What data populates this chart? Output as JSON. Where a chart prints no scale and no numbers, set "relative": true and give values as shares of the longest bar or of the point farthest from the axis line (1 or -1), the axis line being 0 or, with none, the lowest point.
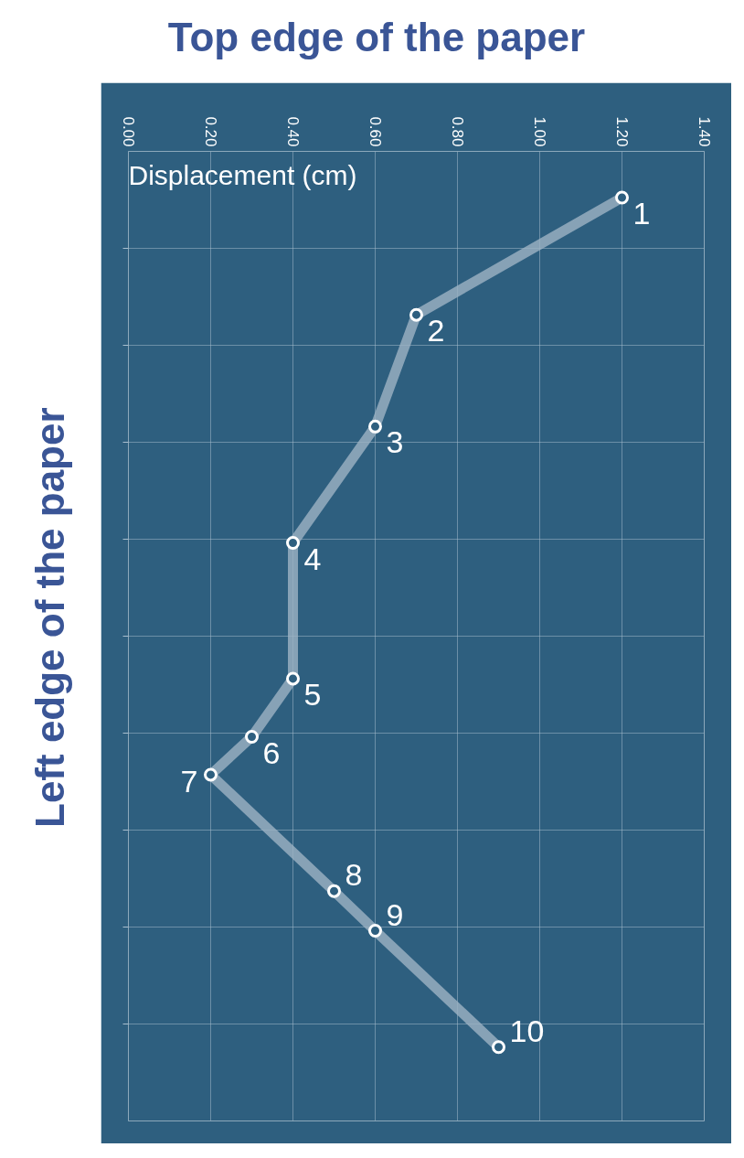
{
  "chart_data": {
    "type": "line",
    "title": "Top edge of the paper",
    "ylabel": "Left edge of the paper",
    "xlabel": "Displacement (cm)",
    "relative": true,
    "x": [
      1.2,
      0.7,
      0.6,
      0.4,
      0.4,
      0.3,
      0.2,
      0.5,
      0.6,
      0.9
    ],
    "series": [
      {
        "color": "#9db3c4",
        "values": [
          1.0,
          0.873,
          0.752,
          0.626,
          0.479,
          0.416,
          0.375,
          0.249,
          0.206,
          0.08
        ]
      }
    ],
    "xlim": [
      0,
      1.4
    ],
    "xticks": [
      {
        "value": 0,
        "label": "0.00"
      },
      {
        "value": 0.2,
        "label": "0.20"
      },
      {
        "value": 0.4,
        "label": "0.40"
      },
      {
        "value": 0.6,
        "label": "0.60"
      },
      {
        "value": 0.8,
        "label": "0.80"
      },
      {
        "value": 1.0,
        "label": "1.00"
      },
      {
        "value": 1.2,
        "label": "1.20"
      },
      {
        "value": 1.4,
        "label": "1.40"
      }
    ],
    "tick_labels": "x",
    "grid": true,
    "marker": "circle",
    "annotations": [
      {
        "text": "1",
        "x": 1.2,
        "y": 1.0
      },
      {
        "text": "2",
        "x": 0.7,
        "y": 0.873
      },
      {
        "text": "3",
        "x": 0.6,
        "y": 0.752
      },
      {
        "text": "4",
        "x": 0.4,
        "y": 0.626
      },
      {
        "text": "5",
        "x": 0.4,
        "y": 0.479
      },
      {
        "text": "6",
        "x": 0.3,
        "y": 0.416
      },
      {
        "text": "7",
        "x": 0.2,
        "y": 0.375
      },
      {
        "text": "8",
        "x": 0.5,
        "y": 0.249
      },
      {
        "text": "9",
        "x": 0.6,
        "y": 0.206
      },
      {
        "text": "10",
        "x": 0.9,
        "y": 0.08
      }
    ]
  }
}
